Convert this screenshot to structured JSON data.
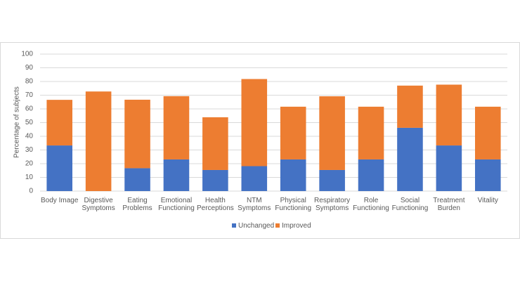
{
  "chart_data": {
    "type": "stacked_bar",
    "y_label": "Percentage of subjects",
    "categories": [
      "Body Image",
      "Digestive\nSymptoms",
      "Eating\nProblems",
      "Emotional\nFunctioning",
      "Health\nPerceptions",
      "NTM\nSymptoms",
      "Physical\nFunctioning",
      "Respiratory\nSymptoms",
      "Role\nFunctioning",
      "Social\nFunctioning",
      "Treatment\nBurden",
      "Vitality"
    ],
    "series": [
      {
        "name": "Unchanged",
        "color": "#4472c4",
        "values": [
          33.3,
          0,
          16.7,
          23.1,
          15.4,
          18.2,
          23.1,
          15.4,
          23.1,
          46.2,
          33.3,
          23.1
        ]
      },
      {
        "name": "Improved",
        "color": "#ed7d31",
        "values": [
          33.3,
          72.7,
          50.0,
          46.2,
          38.5,
          63.6,
          38.5,
          53.8,
          38.5,
          30.8,
          44.4,
          38.5
        ]
      }
    ],
    "ylim": [
      0,
      100
    ],
    "yticks": [
      0,
      10,
      20,
      30,
      40,
      50,
      60,
      70,
      80,
      90,
      100
    ],
    "grid": true,
    "legend": "bottom"
  }
}
